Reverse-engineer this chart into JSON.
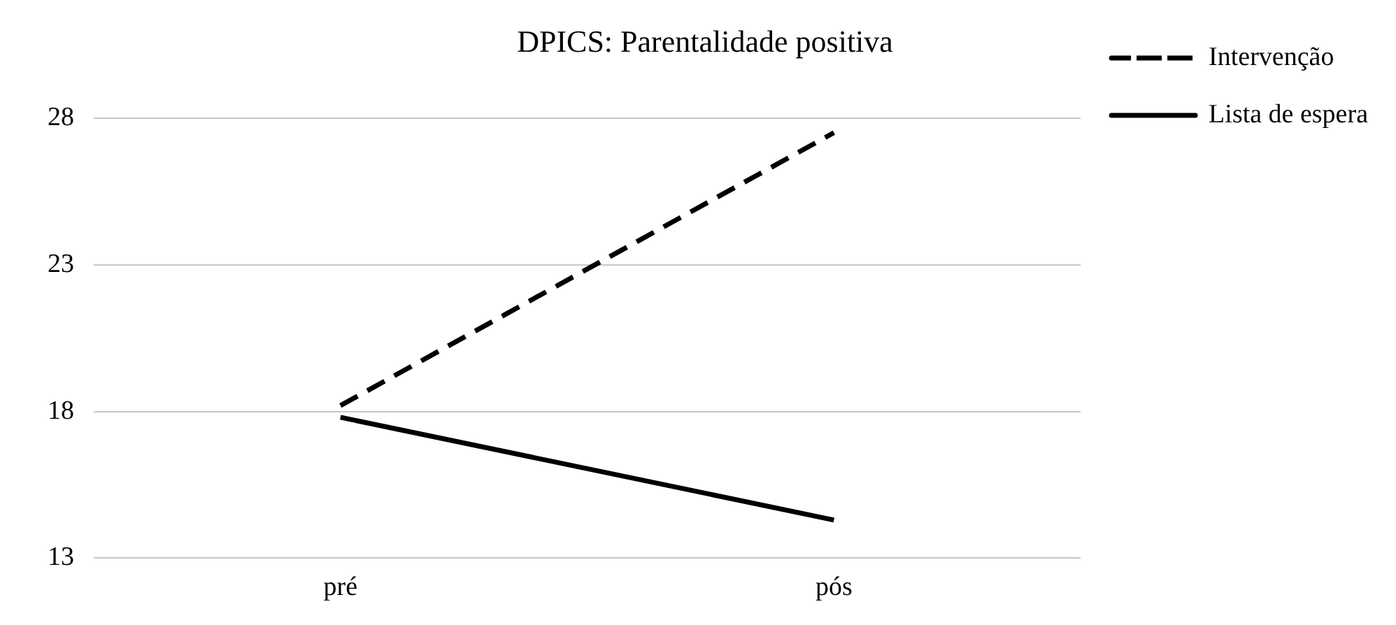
{
  "chart_data": {
    "type": "line",
    "title": "DPICS: Parentalidade positiva",
    "categories": [
      "pré",
      "pós"
    ],
    "series": [
      {
        "name": "Intervenção",
        "color": "#000000",
        "values": [
          18.2,
          27.5
        ],
        "line_style": "dashed"
      },
      {
        "name": "Lista de espera",
        "color": "#000000",
        "values": [
          17.8,
          14.3
        ],
        "line_style": "solid"
      }
    ],
    "ylim": [
      13,
      28
    ],
    "yticks": [
      13,
      18,
      23,
      28
    ],
    "grid": "y",
    "legend": "right",
    "marker": "none"
  }
}
